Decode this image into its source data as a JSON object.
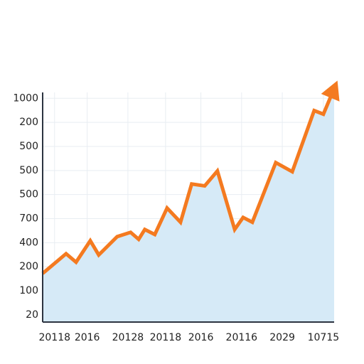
{
  "chart_data": {
    "type": "area",
    "x": [
      -0.31,
      0.3,
      0.56,
      0.93,
      1.15,
      1.63,
      1.98,
      2.19,
      2.35,
      2.61,
      2.93,
      3.28,
      3.57,
      3.91,
      4.24,
      4.69,
      4.91,
      5.15,
      5.76,
      6.19,
      6.76,
      7.0,
      7.28
    ],
    "values": [
      1.72,
      2.54,
      2.19,
      3.08,
      2.49,
      3.25,
      3.43,
      3.14,
      3.55,
      3.34,
      4.44,
      3.85,
      5.44,
      5.36,
      5.98,
      3.55,
      4.05,
      3.85,
      6.33,
      5.95,
      8.49,
      8.34,
      9.41
    ],
    "color": "#f47a20",
    "fill": "#d6eaf7",
    "xlim": [
      -0.31,
      7.28
    ],
    "ylim": [
      -0.3,
      9.6
    ],
    "xticks": [
      {
        "value": 0,
        "label": "20118"
      },
      {
        "value": 0.85,
        "label": "2016"
      },
      {
        "value": 1.91,
        "label": "20128"
      },
      {
        "value": 2.89,
        "label": "20118"
      },
      {
        "value": 3.81,
        "label": "2016"
      },
      {
        "value": 4.87,
        "label": "20116"
      },
      {
        "value": 5.93,
        "label": "2029"
      },
      {
        "value": 7.0,
        "label": "10715"
      }
    ],
    "yticks": [
      {
        "value": 0,
        "label": "20"
      },
      {
        "value": 1,
        "label": "100"
      },
      {
        "value": 2,
        "label": "200"
      },
      {
        "value": 3,
        "label": "400"
      },
      {
        "value": 4,
        "label": "700"
      },
      {
        "value": 5,
        "label": "500"
      },
      {
        "value": 6,
        "label": "500"
      },
      {
        "value": 7,
        "label": "500"
      },
      {
        "value": 8,
        "label": "200"
      },
      {
        "value": 9,
        "label": "1000"
      }
    ],
    "grid": true
  }
}
